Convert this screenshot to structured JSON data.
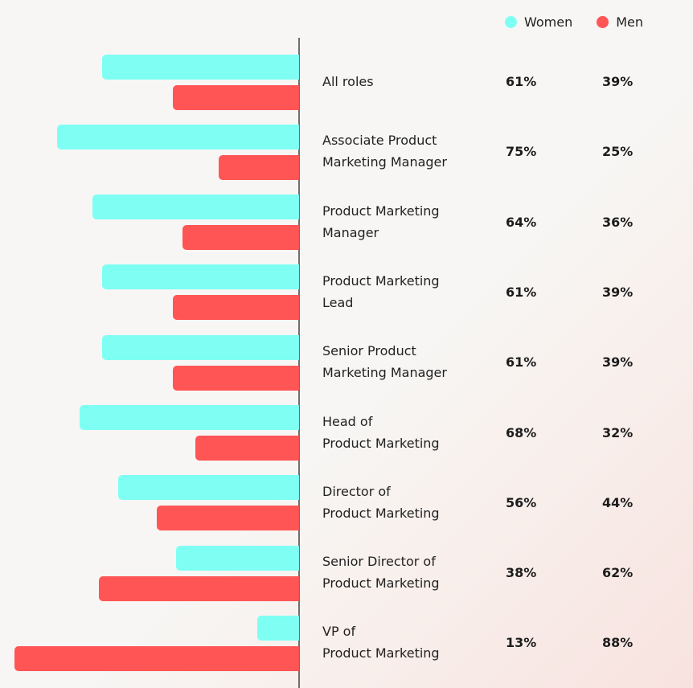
{
  "legend": [
    {
      "name": "Women",
      "color": "#7ffff4"
    },
    {
      "name": "Men",
      "color": "#ff5555"
    }
  ],
  "chart_data": {
    "type": "bar",
    "orientation": "horizontal",
    "title": "",
    "xlabel": "",
    "ylabel": "",
    "xlim": [
      0,
      100
    ],
    "categories": [
      [
        "All roles"
      ],
      [
        "Associate Product",
        "Marketing Manager"
      ],
      [
        "Product Marketing",
        "Manager"
      ],
      [
        "Product Marketing",
        "Lead"
      ],
      [
        "Senior Product",
        "Marketing Manager"
      ],
      [
        "Head of",
        "Product Marketing"
      ],
      [
        "Director of",
        "Product Marketing"
      ],
      [
        "Senior Director of",
        "Product Marketing"
      ],
      [
        "VP of",
        "Product Marketing"
      ]
    ],
    "series": [
      {
        "name": "Women",
        "color": "#7ffff4",
        "values": [
          61,
          75,
          64,
          61,
          61,
          68,
          56,
          38,
          13
        ],
        "labels": [
          "61%",
          "75%",
          "64%",
          "61%",
          "61%",
          "68%",
          "56%",
          "38%",
          "13%"
        ]
      },
      {
        "name": "Men",
        "color": "#ff5555",
        "values": [
          39,
          25,
          36,
          39,
          39,
          32,
          44,
          62,
          88
        ],
        "labels": [
          "39%",
          "25%",
          "36%",
          "39%",
          "39%",
          "32%",
          "44%",
          "62%",
          "88%"
        ]
      }
    ],
    "grid": false,
    "legend_position": "top-right"
  }
}
